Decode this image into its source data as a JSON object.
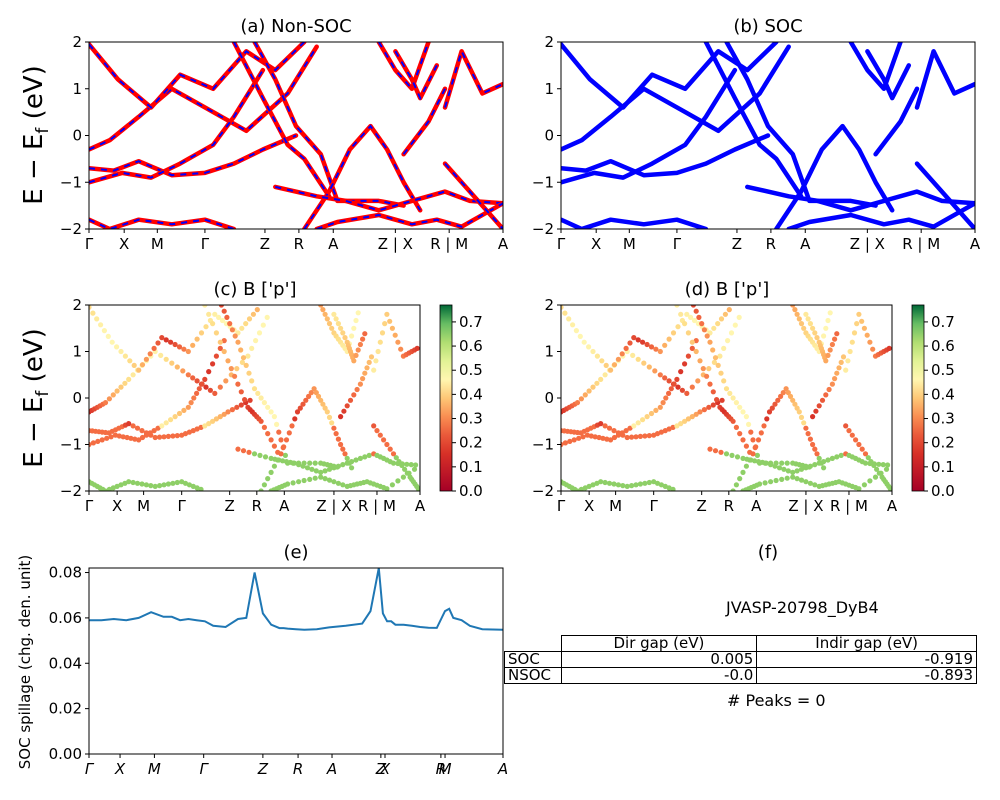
{
  "chart_data": [
    {
      "id": "a",
      "type": "line",
      "title": "(a) Non-SOC",
      "ylabel": "E − E_f (eV)",
      "ylim": [
        -2,
        2
      ],
      "yticks": [
        "2",
        "1",
        "0",
        "−1",
        "−2"
      ],
      "kpath_labels": [
        "Γ",
        "X",
        "M",
        "Γ",
        "Z",
        "R",
        "A",
        "Z | X",
        "R | M",
        "A"
      ],
      "colors": {
        "line": "#ff0000",
        "dash": "#0000ff"
      },
      "series": [
        {
          "x": [
            0,
            0.05,
            0.12,
            0.2,
            0.3,
            0.38,
            0.48,
            0.55
          ],
          "y": [
            -0.3,
            -0.1,
            0.4,
            1.0,
            0.5,
            0.1,
            0.9,
            1.9
          ]
        },
        {
          "x": [
            0,
            0.07,
            0.15,
            0.22,
            0.3,
            0.38,
            0.45,
            0.52
          ],
          "y": [
            1.95,
            1.2,
            0.6,
            1.3,
            1.0,
            1.8,
            1.4,
            2
          ]
        },
        {
          "x": [
            0,
            0.06,
            0.12,
            0.2,
            0.28,
            0.35,
            0.42,
            0.5
          ],
          "y": [
            -0.7,
            -0.75,
            -0.55,
            -0.85,
            -0.8,
            -0.6,
            -0.3,
            0
          ]
        },
        {
          "x": [
            0,
            0.08,
            0.15,
            0.22,
            0.3,
            0.35,
            0.42
          ],
          "y": [
            -1.0,
            -0.8,
            -0.9,
            -0.6,
            -0.2,
            0.4,
            1.4
          ]
        },
        {
          "x": [
            0,
            0.05,
            0.12,
            0.2,
            0.28,
            0.35
          ],
          "y": [
            -1.8,
            -2,
            -1.8,
            -1.9,
            -1.8,
            -2
          ]
        },
        {
          "x": [
            0.35,
            0.42,
            0.48,
            0.52,
            0.58
          ],
          "y": [
            2,
            0.8,
            -0.2,
            -0.5,
            -1.3
          ]
        },
        {
          "x": [
            0.4,
            0.45,
            0.5,
            0.56,
            0.6,
            0.7,
            0.76
          ],
          "y": [
            2,
            1.2,
            0.2,
            -0.4,
            -1.4,
            -1.4,
            -1.5
          ]
        },
        {
          "x": [
            0.52,
            0.58,
            0.63,
            0.68,
            0.72,
            0.76,
            0.8
          ],
          "y": [
            -2,
            -1.2,
            -0.3,
            0.2,
            -0.3,
            -1.0,
            -1.6
          ]
        },
        {
          "x": [
            0.45,
            0.55,
            0.62,
            0.7,
            0.78,
            0.86,
            0.92,
            1.0
          ],
          "y": [
            -1.1,
            -1.3,
            -1.4,
            -1.6,
            -1.4,
            -1.2,
            -1.4,
            -1.45
          ]
        },
        {
          "x": [
            0.55,
            0.6,
            0.7,
            0.78,
            0.84,
            0.9,
            1.0
          ],
          "y": [
            -2,
            -1.85,
            -1.7,
            -1.9,
            -1.8,
            -1.95,
            -1.45
          ]
        },
        {
          "x": [
            0.7,
            0.74,
            0.78,
            0.82
          ],
          "y": [
            2,
            1.4,
            1.0,
            2
          ]
        },
        {
          "x": [
            0.74,
            0.78,
            0.8,
            0.84
          ],
          "y": [
            1.8,
            1.2,
            0.8,
            1.5
          ]
        },
        {
          "x": [
            0.76,
            0.82,
            0.86
          ],
          "y": [
            -0.4,
            0.3,
            1.0
          ]
        },
        {
          "x": [
            0.86,
            0.9,
            0.95,
            1.0
          ],
          "y": [
            0.6,
            1.8,
            0.9,
            1.1
          ]
        },
        {
          "x": [
            0.86,
            0.92,
            0.97,
            1.0
          ],
          "y": [
            -0.6,
            -1.2,
            -1.7,
            -2
          ]
        }
      ]
    },
    {
      "id": "b",
      "type": "line",
      "title": "(b) SOC",
      "ylim": [
        -2,
        2
      ],
      "yticks": [
        "2",
        "1",
        "0",
        "−1",
        "−2"
      ],
      "kpath_labels": [
        "Γ",
        "X",
        "M",
        "Γ",
        "Z",
        "R",
        "A",
        "Z | X",
        "R | M",
        "A"
      ],
      "colors": {
        "line": "#0000ff"
      },
      "series": "same-as-a"
    },
    {
      "id": "c",
      "type": "scatter",
      "title": "(c)  B ['p']",
      "ylabel": "E − E_f (eV)",
      "ylim": [
        -2,
        2
      ],
      "yticks": [
        "2",
        "1",
        "0",
        "−1",
        "−2"
      ],
      "kpath_labels": [
        "Γ",
        "X",
        "M",
        "Γ",
        "Z",
        "R",
        "A",
        "Z | X",
        "R | M",
        "A"
      ],
      "colorbar": {
        "ticks": [
          "0.7",
          "0.6",
          "0.5",
          "0.4",
          "0.3",
          "0.2",
          "0.1",
          "0.0"
        ],
        "cmap": "RdYlGn",
        "range": [
          0,
          0.77
        ]
      }
    },
    {
      "id": "d",
      "type": "scatter",
      "title": "(d) B ['p']",
      "ylim": [
        -2,
        2
      ],
      "yticks": [
        "2",
        "1",
        "0",
        "−1",
        "−2"
      ],
      "kpath_labels": [
        "Γ",
        "X",
        "M",
        "Γ",
        "Z",
        "R",
        "A",
        "Z | X",
        "R | M",
        "A"
      ],
      "colorbar": {
        "ticks": [
          "0.7",
          "0.6",
          "0.5",
          "0.4",
          "0.3",
          "0.2",
          "0.1",
          "0.0"
        ],
        "cmap": "RdYlGn",
        "range": [
          0,
          0.77
        ]
      }
    },
    {
      "id": "e",
      "type": "line",
      "title": "(e)",
      "ylabel": "SOC spillage (chg. den. unit)",
      "ylim": [
        0,
        0.082
      ],
      "yticks": [
        "0.08",
        "0.06",
        "0.04",
        "0.02",
        "0.00"
      ],
      "kpath_labels": [
        "Γ",
        "X",
        "M",
        "Γ",
        "Z",
        "R",
        "A",
        "Z",
        "X",
        "R",
        "M",
        "A"
      ],
      "colors": {
        "line": "#1f77b4"
      },
      "x": [
        0,
        0.03,
        0.06,
        0.09,
        0.12,
        0.15,
        0.18,
        0.2,
        0.22,
        0.24,
        0.26,
        0.28,
        0.3,
        0.33,
        0.36,
        0.38,
        0.4,
        0.42,
        0.44,
        0.46,
        0.47,
        0.48,
        0.5,
        0.52,
        0.55,
        0.58,
        0.62,
        0.66,
        0.68,
        0.7,
        0.71,
        0.72,
        0.73,
        0.74,
        0.76,
        0.78,
        0.8,
        0.82,
        0.84,
        0.86,
        0.87,
        0.88,
        0.9,
        0.92,
        0.95,
        1.0
      ],
      "y": [
        0.059,
        0.059,
        0.0595,
        0.059,
        0.06,
        0.0625,
        0.0605,
        0.0605,
        0.059,
        0.0595,
        0.059,
        0.0585,
        0.0565,
        0.056,
        0.0595,
        0.06,
        0.08,
        0.062,
        0.057,
        0.0555,
        0.0555,
        0.0553,
        0.055,
        0.0548,
        0.055,
        0.0558,
        0.0565,
        0.0575,
        0.063,
        0.085,
        0.062,
        0.0585,
        0.0585,
        0.057,
        0.057,
        0.0565,
        0.056,
        0.0557,
        0.0556,
        0.063,
        0.064,
        0.06,
        0.059,
        0.0565,
        0.055,
        0.0548
      ]
    }
  ],
  "panel_f": {
    "title": "(f)",
    "name": "JVASP-20798_DyB4",
    "headers": [
      "Dir gap (eV)",
      "Indir gap (eV)"
    ],
    "rows": [
      {
        "label": "SOC",
        "dir": "0.005",
        "indir": "-0.919"
      },
      {
        "label": "NSOC",
        "dir": "-0.0",
        "indir": "-0.893"
      }
    ],
    "peaks": "# Peaks = 0"
  }
}
